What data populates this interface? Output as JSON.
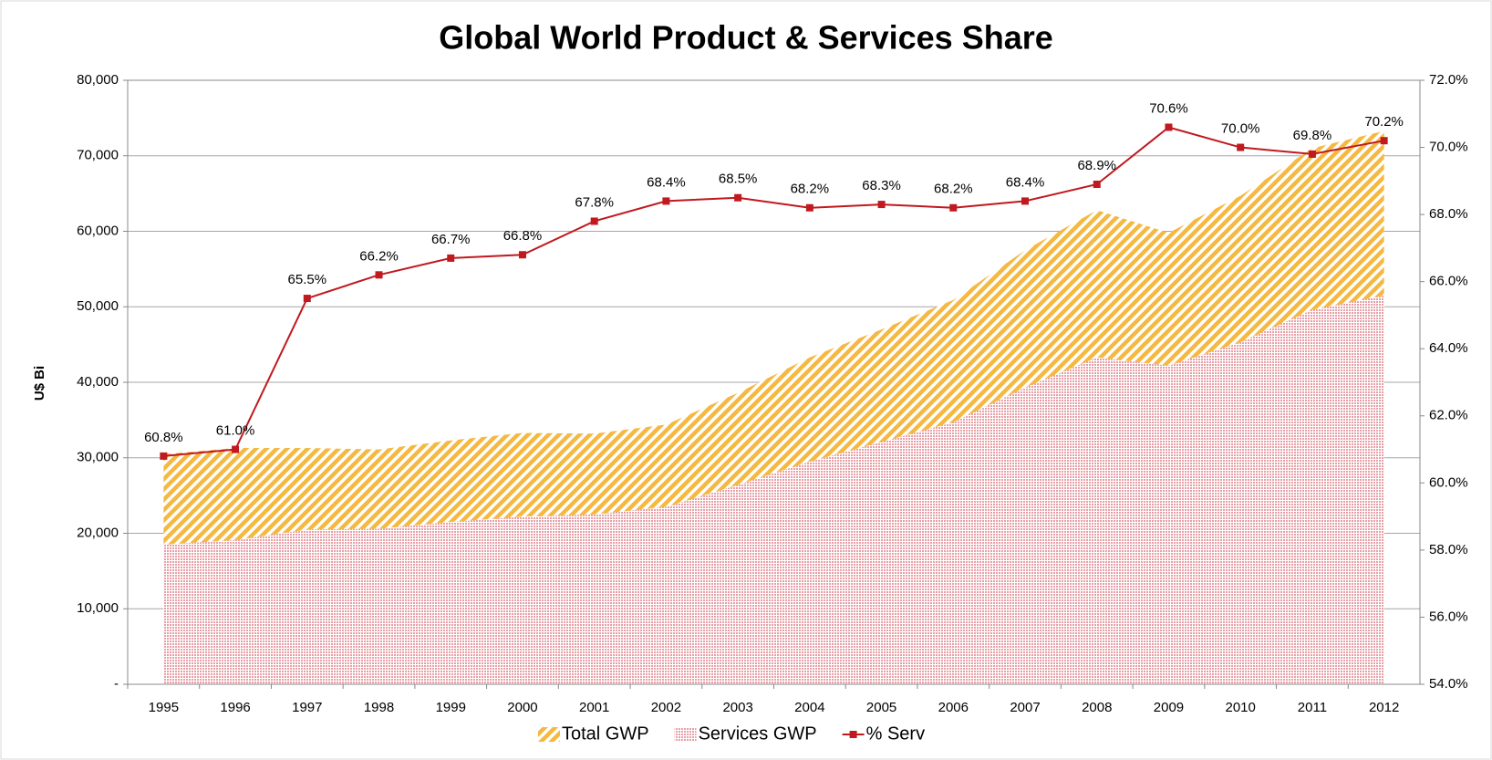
{
  "chart_data": {
    "type": "combo",
    "title": "Global World Product & Services Share",
    "y_label": "U$ Bi",
    "categories": [
      "1995",
      "1996",
      "1997",
      "1998",
      "1999",
      "2000",
      "2001",
      "2002",
      "2003",
      "2004",
      "2005",
      "2006",
      "2007",
      "2008",
      "2009",
      "2010",
      "2011",
      "2012"
    ],
    "ylim": [
      0,
      80000
    ],
    "yticks": [
      {
        "value": 0,
        "label": "-"
      },
      {
        "value": 10000,
        "label": "10,000"
      },
      {
        "value": 20000,
        "label": "20,000"
      },
      {
        "value": 30000,
        "label": "30,000"
      },
      {
        "value": 40000,
        "label": "40,000"
      },
      {
        "value": 50000,
        "label": "50,000"
      },
      {
        "value": 60000,
        "label": "60,000"
      },
      {
        "value": 70000,
        "label": "70,000"
      },
      {
        "value": 80000,
        "label": "80,000"
      }
    ],
    "y2lim": [
      54,
      72
    ],
    "y2ticks": [
      {
        "value": 54,
        "label": "54.0%"
      },
      {
        "value": 56,
        "label": "56.0%"
      },
      {
        "value": 58,
        "label": "58.0%"
      },
      {
        "value": 60,
        "label": "60.0%"
      },
      {
        "value": 62,
        "label": "62.0%"
      },
      {
        "value": 64,
        "label": "64.0%"
      },
      {
        "value": 66,
        "label": "66.0%"
      },
      {
        "value": 68,
        "label": "68.0%"
      },
      {
        "value": 70,
        "label": "70.0%"
      },
      {
        "value": 72,
        "label": "72.0%"
      }
    ],
    "grid": true,
    "legend": "bottom",
    "series": [
      {
        "name": "Total GWP",
        "type": "area",
        "color": "#f5b841",
        "values": [
          30500,
          31300,
          31300,
          31100,
          32300,
          33300,
          33200,
          34400,
          38600,
          43300,
          47000,
          50900,
          57500,
          62800,
          59800,
          64700,
          71000,
          73300
        ]
      },
      {
        "name": "Services GWP",
        "type": "area",
        "color": "#e8a0a8",
        "values": [
          18500,
          19100,
          20500,
          20600,
          21500,
          22200,
          22500,
          23500,
          26400,
          29500,
          32100,
          34700,
          39300,
          43300,
          42200,
          45300,
          49600,
          51500
        ]
      },
      {
        "name": "% Serv",
        "type": "line",
        "axis": "y2",
        "color": "#c0191e",
        "values": [
          60.8,
          61.0,
          65.5,
          66.2,
          66.7,
          66.8,
          67.8,
          68.4,
          68.5,
          68.2,
          68.3,
          68.2,
          68.4,
          68.9,
          70.6,
          70.0,
          69.8,
          70.2
        ],
        "value_labels": [
          "60.8%",
          "61.0%",
          "65.5%",
          "66.2%",
          "66.7%",
          "66.8%",
          "67.8%",
          "68.4%",
          "68.5%",
          "68.2%",
          "68.3%",
          "68.2%",
          "68.4%",
          "68.9%",
          "70.6%",
          "70.0%",
          "69.8%",
          "70.2%"
        ]
      }
    ]
  }
}
